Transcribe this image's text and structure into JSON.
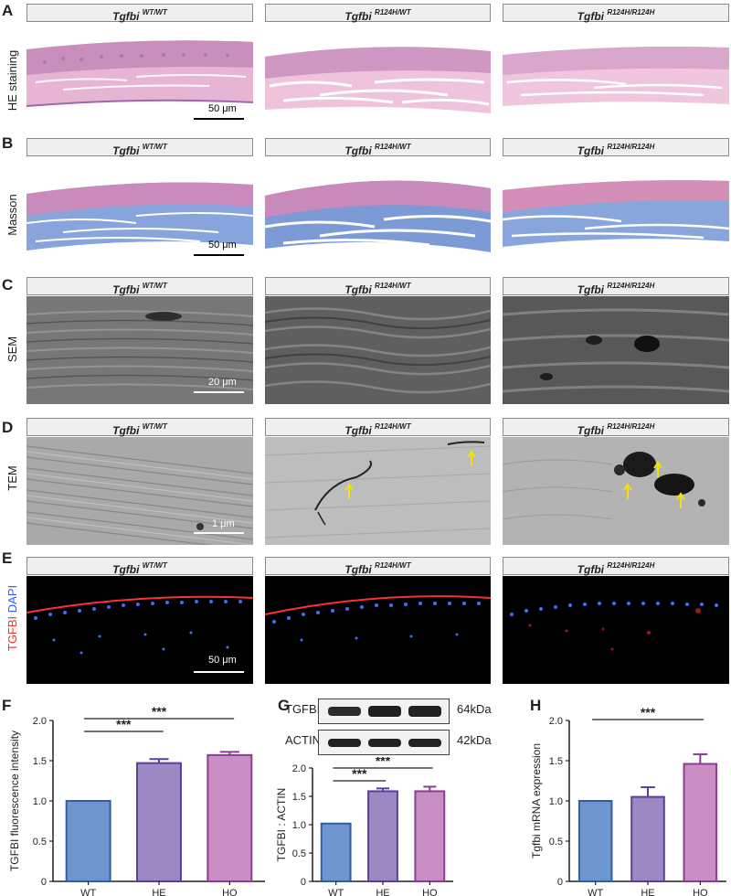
{
  "panel_letters": [
    "A",
    "B",
    "C",
    "D",
    "E",
    "F",
    "G",
    "H"
  ],
  "row_labels": {
    "A": "HE staining",
    "B": "Masson",
    "C": "SEM",
    "D": "TEM",
    "E_red": "TGFBI",
    "E_blue": "DAPI"
  },
  "genotype_headers": [
    {
      "gene": "Tgfbi",
      "sup": "WT/WT"
    },
    {
      "gene": "Tgfbi",
      "sup": "R124H/WT"
    },
    {
      "gene": "Tgfbi",
      "sup": "R124H/R124H"
    }
  ],
  "scale_bars": {
    "A": "50 μm",
    "B": "50 μm",
    "C": "20 μm",
    "D": "1 μm",
    "E": "50 μm"
  },
  "colors": {
    "WT": "#6e96cd",
    "WT_edge": "#2e5ea8",
    "HE": "#9c89c4",
    "HE_edge": "#5a3e9c",
    "HO": "#c98fc4",
    "HO_edge": "#8a3d92",
    "he_pink": "#e9b3d2",
    "masson_blue": "#7f9fd8",
    "tgfbi_red": "#ff3030",
    "dapi_blue": "#3b6cff"
  },
  "western": {
    "bands": [
      {
        "label": "TGFBI",
        "size": "64kDa"
      },
      {
        "label": "ACTIN",
        "size": "42kDa"
      }
    ]
  },
  "chart_data": [
    {
      "panel": "F",
      "type": "bar",
      "categories": [
        "WT",
        "HE",
        "HO"
      ],
      "values": [
        1.0,
        1.47,
        1.57
      ],
      "errors": [
        0.0,
        0.05,
        0.04
      ],
      "ylabel": "TGFBI fluorescence intensity",
      "ylim": [
        0,
        2.0
      ],
      "yticks": [
        "0",
        "0.5",
        "1.0",
        "1.5",
        "2.0"
      ],
      "significance": [
        {
          "from": "WT",
          "to": "HE",
          "label": "***"
        },
        {
          "from": "WT",
          "to": "HO",
          "label": "***"
        }
      ]
    },
    {
      "panel": "G",
      "type": "bar",
      "categories": [
        "WT",
        "HE",
        "HO"
      ],
      "values": [
        1.02,
        1.59,
        1.59
      ],
      "errors": [
        0.0,
        0.05,
        0.08
      ],
      "ylabel": "TGFBI : ACTIN",
      "ylim": [
        0,
        2.0
      ],
      "yticks": [
        "0",
        "0.5",
        "1.0",
        "1.5",
        "2.0"
      ],
      "significance": [
        {
          "from": "WT",
          "to": "HE",
          "label": "***"
        },
        {
          "from": "WT",
          "to": "HO",
          "label": "***"
        }
      ]
    },
    {
      "panel": "H",
      "type": "bar",
      "categories": [
        "WT",
        "HE",
        "HO"
      ],
      "values": [
        1.0,
        1.05,
        1.46
      ],
      "errors": [
        0.0,
        0.12,
        0.12
      ],
      "ylabel": "Tgfbi mRNA expression",
      "ylim": [
        0,
        2.0
      ],
      "yticks": [
        "0",
        "0.5",
        "1.0",
        "1.5",
        "2.0"
      ],
      "significance": [
        {
          "from": "WT",
          "to": "HO",
          "label": "***"
        }
      ]
    }
  ]
}
